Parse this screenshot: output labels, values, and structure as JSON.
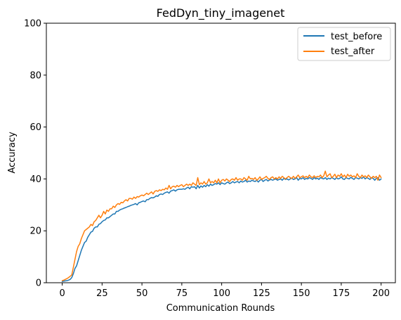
{
  "chart_data": {
    "type": "line",
    "title": "FedDyn_tiny_imagenet",
    "xlabel": "Communication Rounds",
    "ylabel": "Accuracy",
    "xlim": [
      -9.95,
      208.95
    ],
    "ylim": [
      0,
      100
    ],
    "xticks": [
      0,
      25,
      50,
      75,
      100,
      125,
      150,
      175,
      200
    ],
    "yticks": [
      0,
      20,
      40,
      60,
      80,
      100
    ],
    "grid": false,
    "legend_position": "top-right",
    "x": {
      "start": 0,
      "end": 199,
      "step": 1
    },
    "series": [
      {
        "name": "test_before",
        "color": "#1f77b4",
        "values": [
          0.5,
          0.6,
          0.7,
          0.8,
          1.0,
          1.3,
          2.0,
          3.5,
          5.5,
          6.5,
          8.5,
          10.5,
          12.5,
          14.0,
          15.5,
          16.0,
          17.5,
          18.5,
          19.5,
          19.8,
          21.0,
          21.5,
          21.5,
          22.5,
          22.8,
          23.5,
          24.0,
          24.2,
          25.0,
          25.0,
          25.5,
          26.0,
          26.5,
          26.5,
          27.5,
          27.5,
          28.0,
          28.3,
          28.5,
          28.8,
          29.0,
          29.3,
          29.5,
          29.8,
          30.0,
          30.2,
          30.5,
          30.0,
          30.8,
          31.0,
          31.3,
          31.5,
          31.2,
          32.0,
          32.0,
          32.5,
          32.8,
          32.7,
          33.0,
          33.5,
          33.3,
          34.0,
          34.2,
          34.0,
          34.5,
          34.8,
          35.0,
          34.5,
          35.3,
          35.5,
          35.8,
          35.3,
          35.8,
          36.0,
          36.0,
          36.0,
          36.2,
          36.0,
          36.5,
          36.8,
          36.2,
          37.0,
          36.8,
          37.0,
          36.2,
          37.5,
          36.5,
          37.3,
          36.8,
          37.5,
          37.0,
          37.8,
          37.2,
          38.0,
          37.5,
          37.8,
          38.2,
          38.0,
          38.5,
          37.8,
          38.5,
          38.2,
          38.0,
          38.5,
          38.8,
          38.2,
          38.5,
          39.0,
          38.5,
          38.8,
          39.0,
          38.5,
          39.2,
          38.8,
          39.0,
          39.5,
          38.8,
          39.2,
          39.0,
          39.5,
          39.2,
          39.0,
          39.5,
          38.8,
          39.5,
          39.8,
          39.0,
          39.5,
          39.8,
          39.2,
          39.6,
          39.8,
          39.5,
          39.8,
          40.0,
          39.5,
          39.8,
          40.0,
          39.5,
          40.2,
          39.8,
          40.0,
          39.6,
          40.0,
          40.3,
          39.8,
          40.0,
          40.5,
          39.5,
          40.2,
          40.0,
          40.5,
          39.8,
          40.2,
          40.0,
          40.5,
          40.2,
          39.8,
          40.5,
          40.0,
          40.3,
          39.8,
          40.5,
          40.2,
          40.0,
          40.5,
          39.8,
          40.3,
          40.0,
          40.5,
          40.2,
          39.8,
          40.5,
          40.0,
          40.2,
          40.8,
          40.0,
          39.8,
          40.5,
          40.2,
          40.0,
          40.6,
          40.2,
          39.8,
          40.5,
          40.3,
          40.0,
          40.5,
          40.2,
          40.8,
          40.0,
          40.5,
          40.2,
          39.8,
          40.5,
          40.2,
          39.5,
          40.2,
          40.5,
          39.5,
          40.0
        ]
      },
      {
        "name": "test_after",
        "color": "#ff7f0e",
        "values": [
          0.8,
          1.0,
          1.3,
          1.6,
          2.0,
          2.5,
          3.0,
          6.0,
          9.0,
          12.0,
          14.0,
          15.0,
          17.0,
          18.5,
          20.0,
          20.5,
          21.0,
          21.5,
          22.5,
          22.0,
          23.5,
          24.0,
          25.0,
          26.0,
          25.0,
          26.0,
          27.5,
          26.5,
          28.0,
          27.5,
          28.5,
          28.5,
          29.5,
          29.0,
          30.0,
          30.5,
          30.2,
          31.0,
          30.8,
          31.5,
          32.0,
          31.5,
          32.5,
          32.5,
          32.2,
          33.0,
          32.5,
          33.2,
          33.0,
          33.5,
          33.8,
          33.5,
          34.0,
          34.5,
          34.0,
          34.5,
          35.0,
          34.2,
          35.2,
          35.5,
          35.2,
          35.8,
          35.5,
          36.0,
          35.8,
          36.5,
          36.0,
          37.5,
          36.2,
          37.0,
          37.2,
          36.8,
          37.5,
          37.0,
          37.5,
          37.8,
          37.0,
          37.5,
          38.0,
          37.5,
          38.0,
          37.5,
          38.5,
          38.0,
          37.5,
          40.5,
          37.8,
          38.5,
          38.0,
          39.0,
          38.0,
          38.5,
          40.0,
          38.5,
          39.0,
          38.5,
          39.5,
          38.5,
          40.0,
          38.5,
          39.5,
          39.8,
          39.2,
          40.0,
          39.5,
          39.0,
          39.8,
          40.0,
          39.5,
          40.5,
          39.5,
          40.0,
          40.0,
          39.5,
          40.5,
          40.0,
          39.5,
          41.0,
          40.0,
          40.2,
          39.8,
          40.5,
          39.5,
          40.0,
          40.8,
          39.8,
          40.2,
          40.5,
          41.0,
          40.2,
          39.8,
          40.5,
          40.8,
          40.0,
          40.5,
          40.0,
          40.8,
          40.2,
          41.0,
          40.5,
          40.0,
          40.5,
          41.0,
          40.5,
          40.2,
          41.0,
          40.2,
          40.8,
          41.5,
          40.5,
          40.8,
          41.2,
          40.5,
          41.0,
          40.5,
          41.5,
          40.8,
          40.5,
          41.2,
          40.5,
          41.0,
          40.8,
          41.5,
          40.5,
          41.2,
          43.0,
          40.8,
          41.5,
          42.0,
          40.5,
          41.0,
          41.8,
          40.5,
          41.5,
          41.0,
          42.0,
          40.8,
          41.5,
          40.5,
          41.8,
          41.0,
          41.5,
          40.8,
          41.2,
          40.5,
          42.0,
          41.0,
          40.5,
          41.5,
          40.8,
          41.2,
          40.5,
          41.5,
          40.8,
          40.2,
          41.0,
          40.5,
          41.0,
          39.5,
          41.5,
          40.5
        ]
      }
    ]
  }
}
